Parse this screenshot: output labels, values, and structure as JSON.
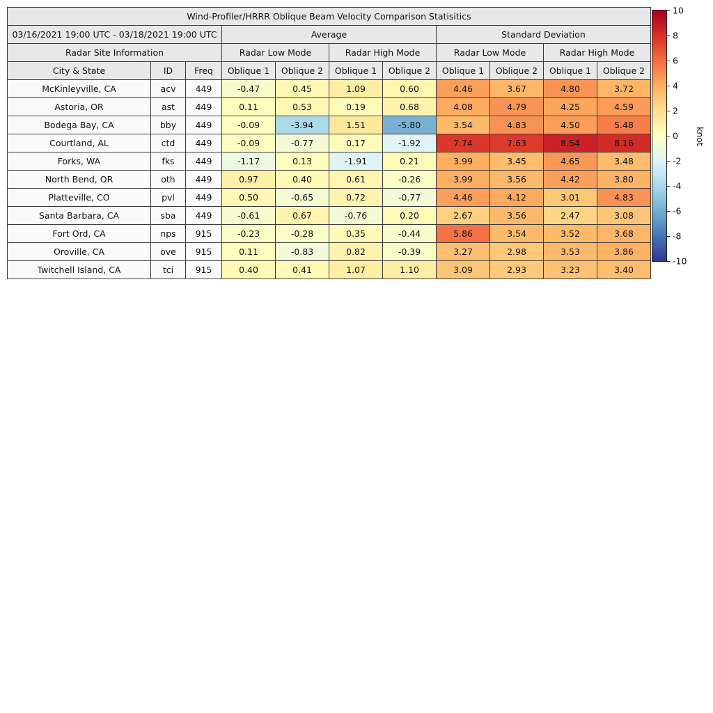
{
  "title": "Wind-Profiler/HRRR Oblique Beam Velocity Comparison Statisitics",
  "period": "03/16/2021 19:00 UTC - 03/18/2021 19:00 UTC",
  "header": {
    "average": "Average",
    "std": "Standard Deviation",
    "site_info": "Radar Site Information",
    "low_mode": "Radar Low Mode",
    "high_mode": "Radar High Mode",
    "columns": [
      "City & State",
      "ID",
      "Freq",
      "Oblique 1",
      "Oblique 2",
      "Oblique 1",
      "Oblique 2",
      "Oblique 1",
      "Oblique 2",
      "Oblique 1",
      "Oblique 2"
    ]
  },
  "chart_data": {
    "type": "heatmap",
    "title": "Wind-Profiler/HRRR Oblique Beam Velocity Comparison Statisitics",
    "value_unit": "knot",
    "colormap": {
      "name": "RdYlBu_r",
      "domain": [
        -10,
        10
      ],
      "stops": [
        "#313695",
        "#4575b4",
        "#74add1",
        "#abd9e9",
        "#e0f3f8",
        "#ffffbf",
        "#fee090",
        "#fdae61",
        "#f46d43",
        "#d73027",
        "#a50026"
      ]
    },
    "colorbar": {
      "label": "knot",
      "ticks": [
        10,
        8,
        6,
        4,
        2,
        0,
        -2,
        -4,
        -6,
        -8,
        -10
      ]
    },
    "column_groups": [
      "Average / Radar Low Mode Oblique 1",
      "Average / Radar Low Mode Oblique 2",
      "Average / Radar High Mode Oblique 1",
      "Average / Radar High Mode Oblique 2",
      "Standard Deviation / Radar Low Mode Oblique 1",
      "Standard Deviation / Radar Low Mode Oblique 2",
      "Standard Deviation / Radar High Mode Oblique 1",
      "Standard Deviation / Radar High Mode Oblique 2"
    ],
    "rows": [
      {
        "city": "McKinleyville, CA",
        "id": "acv",
        "freq": "449",
        "values": [
          -0.47,
          0.45,
          1.09,
          0.6,
          4.46,
          3.67,
          4.8,
          3.72
        ]
      },
      {
        "city": "Astoria, OR",
        "id": "ast",
        "freq": "449",
        "values": [
          0.11,
          0.53,
          0.19,
          0.68,
          4.08,
          4.79,
          4.25,
          4.59
        ]
      },
      {
        "city": "Bodega Bay, CA",
        "id": "bby",
        "freq": "449",
        "values": [
          -0.09,
          -3.94,
          1.51,
          -5.8,
          3.54,
          4.83,
          4.5,
          5.48
        ]
      },
      {
        "city": "Courtland, AL",
        "id": "ctd",
        "freq": "449",
        "values": [
          -0.09,
          -0.77,
          0.17,
          -1.92,
          7.74,
          7.63,
          8.54,
          8.16
        ]
      },
      {
        "city": "Forks, WA",
        "id": "fks",
        "freq": "449",
        "values": [
          -1.17,
          0.13,
          -1.91,
          0.21,
          3.99,
          3.45,
          4.65,
          3.48
        ]
      },
      {
        "city": "North Bend, OR",
        "id": "oth",
        "freq": "449",
        "values": [
          0.97,
          0.4,
          0.61,
          -0.26,
          3.99,
          3.56,
          4.42,
          3.8
        ]
      },
      {
        "city": "Platteville, CO",
        "id": "pvl",
        "freq": "449",
        "values": [
          0.5,
          -0.65,
          0.72,
          -0.77,
          4.46,
          4.12,
          3.01,
          4.83
        ]
      },
      {
        "city": "Santa Barbara, CA",
        "id": "sba",
        "freq": "449",
        "values": [
          -0.61,
          0.67,
          -0.76,
          0.2,
          2.67,
          3.56,
          2.47,
          3.08
        ]
      },
      {
        "city": "Fort Ord, CA",
        "id": "nps",
        "freq": "915",
        "values": [
          -0.23,
          -0.28,
          0.35,
          -0.44,
          5.86,
          3.54,
          3.52,
          3.68
        ]
      },
      {
        "city": "Oroville, CA",
        "id": "ove",
        "freq": "915",
        "values": [
          0.11,
          -0.83,
          0.82,
          -0.39,
          3.27,
          2.98,
          3.53,
          3.86
        ]
      },
      {
        "city": "Twitchell Island, CA",
        "id": "tci",
        "freq": "915",
        "values": [
          0.4,
          0.41,
          1.07,
          1.1,
          3.09,
          2.93,
          3.23,
          3.4
        ]
      }
    ]
  }
}
